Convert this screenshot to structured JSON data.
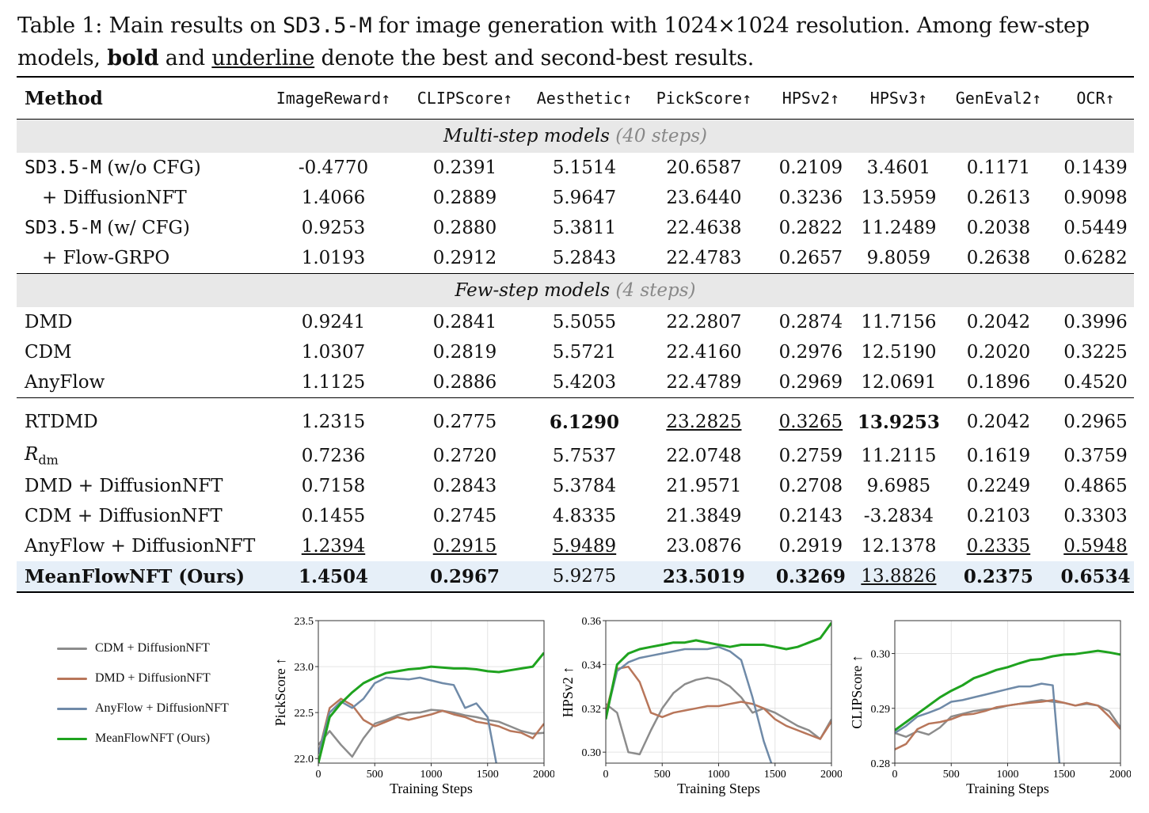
{
  "caption": {
    "prefix": "Table 1: Main results on ",
    "model_code": "SD3.5-M",
    "middle": " for image generation with 1024×1024 resolution. Among few-step models, ",
    "bold_word": "bold",
    "and_word": " and ",
    "underline_word": "underline",
    "suffix": " denote the best and second-best results."
  },
  "table": {
    "headers": [
      "Method",
      "ImageReward↑",
      "CLIPScore↑",
      "Aesthetic↑",
      "PickScore↑",
      "HPSv2↑",
      "HPSv3↑",
      "GenEval2↑",
      "OCR↑"
    ],
    "section_multi": {
      "label": "Multi-step models",
      "steps": "(40 steps)"
    },
    "section_few": {
      "label": "Few-step models",
      "steps": "(4 steps)"
    },
    "multi_rows": [
      {
        "method_code": "SD3.5-M",
        "method_suffix": " (w/o CFG)",
        "values": [
          "-0.4770",
          "0.2391",
          "5.1514",
          "20.6587",
          "0.2109",
          "3.4601",
          "0.1171",
          "0.1439"
        ]
      },
      {
        "method": "+ DiffusionNFT",
        "values": [
          "1.4066",
          "0.2889",
          "5.9647",
          "23.6440",
          "0.3236",
          "13.5959",
          "0.2613",
          "0.9098"
        ]
      },
      {
        "method_code": "SD3.5-M",
        "method_suffix": " (w/ CFG)",
        "values": [
          "0.9253",
          "0.2880",
          "5.3811",
          "22.4638",
          "0.2822",
          "11.2489",
          "0.2038",
          "0.5449"
        ]
      },
      {
        "method": "+ Flow-GRPO",
        "values": [
          "1.0193",
          "0.2912",
          "5.2843",
          "22.4783",
          "0.2657",
          "9.8059",
          "0.2638",
          "0.6282"
        ]
      }
    ],
    "few_rows_a": [
      {
        "method": "DMD",
        "values": [
          "0.9241",
          "0.2841",
          "5.5055",
          "22.2807",
          "0.2874",
          "11.7156",
          "0.2042",
          "0.3996"
        ]
      },
      {
        "method": "CDM",
        "values": [
          "1.0307",
          "0.2819",
          "5.5721",
          "22.4160",
          "0.2976",
          "12.5190",
          "0.2020",
          "0.3225"
        ]
      },
      {
        "method": "AnyFlow",
        "values": [
          "1.1125",
          "0.2886",
          "5.4203",
          "22.4789",
          "0.2969",
          "12.0691",
          "0.1896",
          "0.4520"
        ]
      }
    ],
    "few_rows_b": [
      {
        "method": "RTDMD",
        "values": [
          "1.2315",
          "0.2775",
          "6.1290",
          "23.2825",
          "0.3265",
          "13.9253",
          "0.2042",
          "0.2965"
        ]
      },
      {
        "method_R": "R",
        "method_sub": "dm",
        "values": [
          "0.7236",
          "0.2720",
          "5.7537",
          "22.0748",
          "0.2759",
          "11.2115",
          "0.1619",
          "0.3759"
        ]
      },
      {
        "method": "DMD + DiffusionNFT",
        "values": [
          "0.7158",
          "0.2843",
          "5.3784",
          "21.9571",
          "0.2708",
          "9.6985",
          "0.2249",
          "0.4865"
        ]
      },
      {
        "method": "CDM + DiffusionNFT",
        "values": [
          "0.1455",
          "0.2745",
          "4.8335",
          "21.3849",
          "0.2143",
          "-3.2834",
          "0.2103",
          "0.3303"
        ]
      },
      {
        "method": "AnyFlow + DiffusionNFT",
        "values": [
          "1.2394",
          "0.2915",
          "5.9489",
          "23.0876",
          "0.2919",
          "12.1378",
          "0.2335",
          "0.5948"
        ]
      },
      {
        "method": "MeanFlowNFT (Ours)",
        "values": [
          "1.4504",
          "0.2967",
          "5.9275",
          "23.5019",
          "0.3269",
          "13.8826",
          "0.2375",
          "0.6534"
        ]
      }
    ]
  },
  "legend": [
    {
      "label": "CDM + DiffusionNFT",
      "color": "#8c8c8c"
    },
    {
      "label": "DMD + DiffusionNFT",
      "color": "#b8765a"
    },
    {
      "label": "AnyFlow + DiffusionNFT",
      "color": "#6f8aa8"
    },
    {
      "label": "MeanFlowNFT (Ours)",
      "color": "#1fa31f"
    }
  ],
  "chart_data": [
    {
      "type": "line",
      "ylabel": "PickScore ↑",
      "xlabel": "Training Steps",
      "xlim": [
        0,
        2000
      ],
      "ylim": [
        21.95,
        23.5
      ],
      "xticks": [
        0,
        500,
        1000,
        1500,
        2000
      ],
      "yticks": [
        22.0,
        22.5,
        23.0,
        23.5
      ],
      "ytick_labels": [
        "22.0",
        "22.5",
        "23.0",
        "23.5"
      ],
      "grid": true,
      "x": [
        0,
        100,
        200,
        300,
        400,
        500,
        600,
        700,
        800,
        900,
        1000,
        1100,
        1200,
        1300,
        1400,
        1500,
        1600,
        1700,
        1800,
        1900,
        2000
      ],
      "series": [
        {
          "name": "CDM + DiffusionNFT",
          "color": "#8c8c8c",
          "values": [
            22.15,
            22.3,
            22.15,
            22.02,
            22.22,
            22.38,
            22.42,
            22.47,
            22.5,
            22.5,
            22.53,
            22.52,
            22.5,
            22.47,
            22.45,
            22.42,
            22.4,
            22.35,
            22.3,
            22.27,
            22.28
          ]
        },
        {
          "name": "DMD + DiffusionNFT",
          "color": "#b8765a",
          "values": [
            22.05,
            22.55,
            22.65,
            22.58,
            22.42,
            22.35,
            22.4,
            22.45,
            22.42,
            22.45,
            22.48,
            22.52,
            22.48,
            22.45,
            22.4,
            22.38,
            22.35,
            22.3,
            22.28,
            22.22,
            22.38
          ]
        },
        {
          "name": "AnyFlow + DiffusionNFT",
          "color": "#6f8aa8",
          "values": [
            22.05,
            22.5,
            22.62,
            22.55,
            22.65,
            22.82,
            22.88,
            22.87,
            22.86,
            22.88,
            22.85,
            22.82,
            22.8,
            22.55,
            22.6,
            22.45,
            21.8,
            null,
            null,
            null,
            null
          ]
        },
        {
          "name": "MeanFlowNFT (Ours)",
          "color": "#1fa31f",
          "values": [
            21.95,
            22.45,
            22.6,
            22.72,
            22.82,
            22.88,
            22.93,
            22.95,
            22.97,
            22.98,
            23.0,
            22.99,
            22.98,
            22.98,
            22.97,
            22.95,
            22.94,
            22.96,
            22.98,
            23.0,
            23.15
          ]
        }
      ]
    },
    {
      "type": "line",
      "ylabel": "HPSv2 ↑",
      "xlabel": "Training Steps",
      "xlim": [
        0,
        2000
      ],
      "ylim": [
        0.295,
        0.36
      ],
      "xticks": [
        0,
        500,
        1000,
        1500,
        2000
      ],
      "yticks": [
        0.3,
        0.32,
        0.34,
        0.36
      ],
      "ytick_labels": [
        "0.30",
        "0.32",
        "0.34",
        "0.36"
      ],
      "grid": true,
      "x": [
        0,
        100,
        200,
        300,
        400,
        500,
        600,
        700,
        800,
        900,
        1000,
        1100,
        1200,
        1300,
        1400,
        1500,
        1600,
        1700,
        1800,
        1900,
        2000
      ],
      "series": [
        {
          "name": "CDM + DiffusionNFT",
          "color": "#8c8c8c",
          "values": [
            0.322,
            0.318,
            0.3,
            0.299,
            0.31,
            0.32,
            0.327,
            0.331,
            0.333,
            0.334,
            0.333,
            0.33,
            0.325,
            0.318,
            0.32,
            0.318,
            0.315,
            0.312,
            0.31,
            0.306,
            0.315
          ]
        },
        {
          "name": "DMD + DiffusionNFT",
          "color": "#b8765a",
          "values": [
            0.318,
            0.338,
            0.339,
            0.332,
            0.318,
            0.316,
            0.318,
            0.319,
            0.32,
            0.321,
            0.321,
            0.322,
            0.323,
            0.322,
            0.32,
            0.315,
            0.312,
            0.31,
            0.308,
            0.306,
            0.314
          ]
        },
        {
          "name": "AnyFlow + DiffusionNFT",
          "color": "#6f8aa8",
          "values": [
            0.316,
            0.337,
            0.341,
            0.343,
            0.344,
            0.345,
            0.346,
            0.347,
            0.347,
            0.347,
            0.348,
            0.346,
            0.342,
            0.325,
            0.305,
            0.29,
            null,
            null,
            null,
            null,
            null
          ]
        },
        {
          "name": "MeanFlowNFT (Ours)",
          "color": "#1fa31f",
          "values": [
            0.315,
            0.34,
            0.345,
            0.347,
            0.348,
            0.349,
            0.35,
            0.35,
            0.351,
            0.35,
            0.349,
            0.348,
            0.349,
            0.349,
            0.349,
            0.348,
            0.347,
            0.348,
            0.35,
            0.352,
            0.359
          ]
        }
      ]
    },
    {
      "type": "line",
      "ylabel": "CLIPScore ↑",
      "xlabel": "Training Steps",
      "xlim": [
        0,
        2000
      ],
      "ylim": [
        0.28,
        0.306
      ],
      "xticks": [
        0,
        500,
        1000,
        1500,
        2000
      ],
      "yticks": [
        0.28,
        0.29,
        0.3
      ],
      "ytick_labels": [
        "0.28",
        "0.29",
        "0.30"
      ],
      "grid": true,
      "x": [
        0,
        100,
        200,
        300,
        400,
        500,
        600,
        700,
        800,
        900,
        1000,
        1100,
        1200,
        1300,
        1400,
        1500,
        1600,
        1700,
        1800,
        1900,
        2000
      ],
      "series": [
        {
          "name": "CDM + DiffusionNFT",
          "color": "#8c8c8c",
          "values": [
            0.2855,
            0.2848,
            0.2858,
            0.2852,
            0.2865,
            0.2885,
            0.289,
            0.2895,
            0.2898,
            0.29,
            0.2905,
            0.2908,
            0.2912,
            0.2915,
            0.2912,
            0.291,
            0.2905,
            0.2908,
            0.2905,
            0.2895,
            0.2865
          ]
        },
        {
          "name": "DMD + DiffusionNFT",
          "color": "#b8765a",
          "values": [
            0.2825,
            0.2835,
            0.2862,
            0.2872,
            0.2875,
            0.288,
            0.2888,
            0.289,
            0.2895,
            0.2902,
            0.2905,
            0.2908,
            0.291,
            0.2912,
            0.2915,
            0.291,
            0.2905,
            0.291,
            0.2905,
            0.2885,
            0.2862
          ]
        },
        {
          "name": "AnyFlow + DiffusionNFT",
          "color": "#6f8aa8",
          "values": [
            0.2855,
            0.2868,
            0.2885,
            0.2892,
            0.29,
            0.2912,
            0.2915,
            0.292,
            0.2925,
            0.293,
            0.2935,
            0.294,
            0.294,
            0.2945,
            0.2942,
            0.27,
            null,
            null,
            null,
            null,
            null
          ]
        },
        {
          "name": "MeanFlowNFT (Ours)",
          "color": "#1fa31f",
          "values": [
            0.286,
            0.2875,
            0.289,
            0.2905,
            0.292,
            0.2932,
            0.2942,
            0.2955,
            0.2962,
            0.297,
            0.2975,
            0.2982,
            0.2988,
            0.299,
            0.2995,
            0.2998,
            0.2999,
            0.3002,
            0.3005,
            0.3002,
            0.2998
          ]
        }
      ]
    }
  ]
}
